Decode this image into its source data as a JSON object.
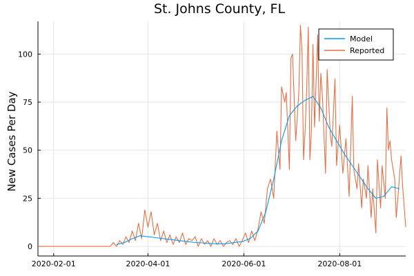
{
  "chart_data": {
    "type": "line",
    "title": "St. Johns County, FL",
    "xlabel": "",
    "ylabel": "New Cases Per Day",
    "x_axis_type": "date",
    "xlim": [
      "2020-01-22",
      "2020-09-12"
    ],
    "ylim": [
      -5,
      117
    ],
    "x_ticks": [
      "2020-02-01",
      "2020-04-01",
      "2020-06-01",
      "2020-08-01"
    ],
    "y_ticks": [
      0,
      25,
      50,
      75,
      100
    ],
    "grid": true,
    "legend_position": "top-right",
    "colors": {
      "Model": "#009af9",
      "Reported": "#e26f46"
    },
    "series": [
      {
        "name": "Model",
        "points": [
          [
            "2020-03-12",
            1
          ],
          [
            "2020-03-17",
            2
          ],
          [
            "2020-03-22",
            4
          ],
          [
            "2020-03-27",
            5.5
          ],
          [
            "2020-04-01",
            5
          ],
          [
            "2020-04-06",
            4.5
          ],
          [
            "2020-04-11",
            4
          ],
          [
            "2020-04-16",
            3.5
          ],
          [
            "2020-04-21",
            3
          ],
          [
            "2020-04-26",
            2.5
          ],
          [
            "2020-05-01",
            2
          ],
          [
            "2020-05-06",
            1.8
          ],
          [
            "2020-05-11",
            1.5
          ],
          [
            "2020-05-16",
            1.3
          ],
          [
            "2020-05-21",
            1.5
          ],
          [
            "2020-05-26",
            2
          ],
          [
            "2020-05-31",
            2.5
          ],
          [
            "2020-06-05",
            4
          ],
          [
            "2020-06-10",
            8
          ],
          [
            "2020-06-15",
            18
          ],
          [
            "2020-06-20",
            35
          ],
          [
            "2020-06-25",
            55
          ],
          [
            "2020-06-30",
            68
          ],
          [
            "2020-07-05",
            73
          ],
          [
            "2020-07-10",
            76
          ],
          [
            "2020-07-15",
            78
          ],
          [
            "2020-07-20",
            72
          ],
          [
            "2020-07-25",
            62
          ],
          [
            "2020-07-30",
            55
          ],
          [
            "2020-08-04",
            48
          ],
          [
            "2020-08-09",
            42
          ],
          [
            "2020-08-14",
            36
          ],
          [
            "2020-08-19",
            30
          ],
          [
            "2020-08-24",
            25
          ],
          [
            "2020-08-29",
            26
          ],
          [
            "2020-09-03",
            31
          ],
          [
            "2020-09-08",
            30
          ]
        ]
      },
      {
        "name": "Reported",
        "points": [
          [
            "2020-01-22",
            0
          ],
          [
            "2020-03-08",
            0
          ],
          [
            "2020-03-10",
            2
          ],
          [
            "2020-03-12",
            0
          ],
          [
            "2020-03-14",
            3
          ],
          [
            "2020-03-16",
            1
          ],
          [
            "2020-03-18",
            5
          ],
          [
            "2020-03-20",
            2
          ],
          [
            "2020-03-22",
            8
          ],
          [
            "2020-03-24",
            3
          ],
          [
            "2020-03-26",
            12
          ],
          [
            "2020-03-28",
            4
          ],
          [
            "2020-03-30",
            19
          ],
          [
            "2020-04-01",
            10
          ],
          [
            "2020-04-03",
            18
          ],
          [
            "2020-04-05",
            6
          ],
          [
            "2020-04-07",
            12
          ],
          [
            "2020-04-09",
            3
          ],
          [
            "2020-04-11",
            8
          ],
          [
            "2020-04-13",
            2
          ],
          [
            "2020-04-15",
            6
          ],
          [
            "2020-04-17",
            1
          ],
          [
            "2020-04-19",
            5
          ],
          [
            "2020-04-21",
            2
          ],
          [
            "2020-04-23",
            7
          ],
          [
            "2020-04-25",
            1
          ],
          [
            "2020-04-27",
            4
          ],
          [
            "2020-04-29",
            3
          ],
          [
            "2020-05-01",
            5
          ],
          [
            "2020-05-03",
            0
          ],
          [
            "2020-05-05",
            4
          ],
          [
            "2020-05-07",
            1
          ],
          [
            "2020-05-09",
            3
          ],
          [
            "2020-05-11",
            0
          ],
          [
            "2020-05-13",
            4
          ],
          [
            "2020-05-15",
            1
          ],
          [
            "2020-05-17",
            3
          ],
          [
            "2020-05-19",
            0
          ],
          [
            "2020-05-21",
            2
          ],
          [
            "2020-05-23",
            3
          ],
          [
            "2020-05-25",
            1
          ],
          [
            "2020-05-27",
            4
          ],
          [
            "2020-05-29",
            0
          ],
          [
            "2020-05-31",
            3
          ],
          [
            "2020-06-02",
            7
          ],
          [
            "2020-06-04",
            2
          ],
          [
            "2020-06-06",
            8
          ],
          [
            "2020-06-08",
            3
          ],
          [
            "2020-06-10",
            9
          ],
          [
            "2020-06-12",
            18
          ],
          [
            "2020-06-14",
            12
          ],
          [
            "2020-06-16",
            30
          ],
          [
            "2020-06-18",
            35
          ],
          [
            "2020-06-20",
            25
          ],
          [
            "2020-06-22",
            60
          ],
          [
            "2020-06-24",
            40
          ],
          [
            "2020-06-25",
            83
          ],
          [
            "2020-06-27",
            75
          ],
          [
            "2020-06-28",
            80
          ],
          [
            "2020-06-30",
            40
          ],
          [
            "2020-07-01",
            98
          ],
          [
            "2020-07-02",
            100
          ],
          [
            "2020-07-04",
            55
          ],
          [
            "2020-07-06",
            80
          ],
          [
            "2020-07-07",
            115
          ],
          [
            "2020-07-08",
            102
          ],
          [
            "2020-07-09",
            45
          ],
          [
            "2020-07-10",
            60
          ],
          [
            "2020-07-11",
            82
          ],
          [
            "2020-07-12",
            114
          ],
          [
            "2020-07-13",
            45
          ],
          [
            "2020-07-14",
            60
          ],
          [
            "2020-07-15",
            105
          ],
          [
            "2020-07-16",
            62
          ],
          [
            "2020-07-18",
            110
          ],
          [
            "2020-07-19",
            65
          ],
          [
            "2020-07-20",
            90
          ],
          [
            "2020-07-21",
            78
          ],
          [
            "2020-07-23",
            38
          ],
          [
            "2020-07-24",
            92
          ],
          [
            "2020-07-26",
            58
          ],
          [
            "2020-07-27",
            52
          ],
          [
            "2020-07-29",
            87
          ],
          [
            "2020-07-30",
            42
          ],
          [
            "2020-08-01",
            63
          ],
          [
            "2020-08-03",
            38
          ],
          [
            "2020-08-05",
            56
          ],
          [
            "2020-08-07",
            26
          ],
          [
            "2020-08-09",
            78
          ],
          [
            "2020-08-10",
            40
          ],
          [
            "2020-08-12",
            30
          ],
          [
            "2020-08-13",
            43
          ],
          [
            "2020-08-15",
            20
          ],
          [
            "2020-08-16",
            35
          ],
          [
            "2020-08-18",
            25
          ],
          [
            "2020-08-19",
            42
          ],
          [
            "2020-08-21",
            15
          ],
          [
            "2020-08-22",
            30
          ],
          [
            "2020-08-24",
            7
          ],
          [
            "2020-08-25",
            45
          ],
          [
            "2020-08-27",
            20
          ],
          [
            "2020-08-28",
            42
          ],
          [
            "2020-08-30",
            25
          ],
          [
            "2020-08-31",
            72
          ],
          [
            "2020-09-01",
            50
          ],
          [
            "2020-09-02",
            55
          ],
          [
            "2020-09-03",
            45
          ],
          [
            "2020-09-05",
            35
          ],
          [
            "2020-09-06",
            15
          ],
          [
            "2020-09-07",
            25
          ],
          [
            "2020-09-09",
            47
          ],
          [
            "2020-09-10",
            32
          ],
          [
            "2020-09-12",
            10
          ]
        ]
      }
    ]
  }
}
